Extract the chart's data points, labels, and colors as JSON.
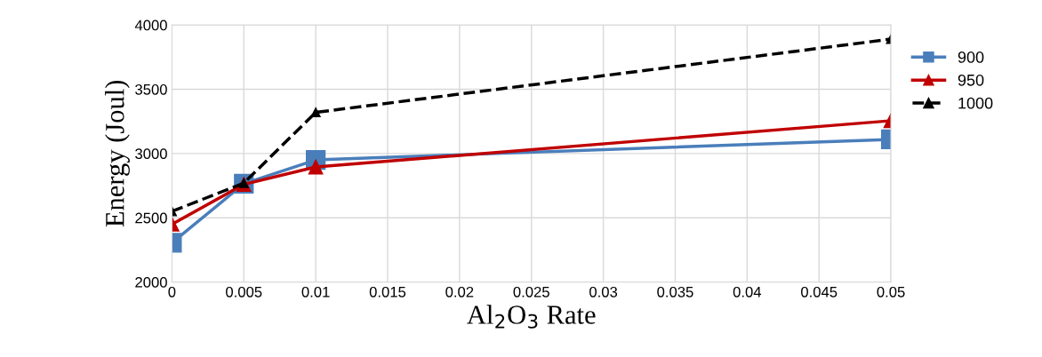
{
  "chart_data": {
    "type": "line",
    "xlabel": "Al$_{2}$O$_{3}$ Rate",
    "ylabel": "Energy (Joul)",
    "x": [
      0,
      0.005,
      0.01,
      0.05
    ],
    "series": [
      {
        "name": "900",
        "color": "#4a7ebb",
        "marker": "square",
        "line_style": "solid",
        "values": [
          2305,
          2765,
          2950,
          3110
        ]
      },
      {
        "name": "950",
        "color": "#c00000",
        "marker": "triangle",
        "line_style": "solid",
        "values": [
          2450,
          2760,
          2895,
          3255
        ]
      },
      {
        "name": "1000",
        "color": "#000000",
        "marker": "triangle",
        "line_style": "dashed",
        "values": [
          2550,
          2770,
          3320,
          3890
        ]
      }
    ],
    "xlim": [
      0,
      0.05
    ],
    "xticks": [
      0,
      0.005,
      0.01,
      0.015,
      0.02,
      0.025,
      0.03,
      0.035,
      0.04,
      0.045,
      0.05
    ],
    "ylim": [
      2000,
      4000
    ],
    "yticks": [
      2000,
      2500,
      3000,
      3500,
      4000
    ],
    "grid": true,
    "legend": "right"
  }
}
